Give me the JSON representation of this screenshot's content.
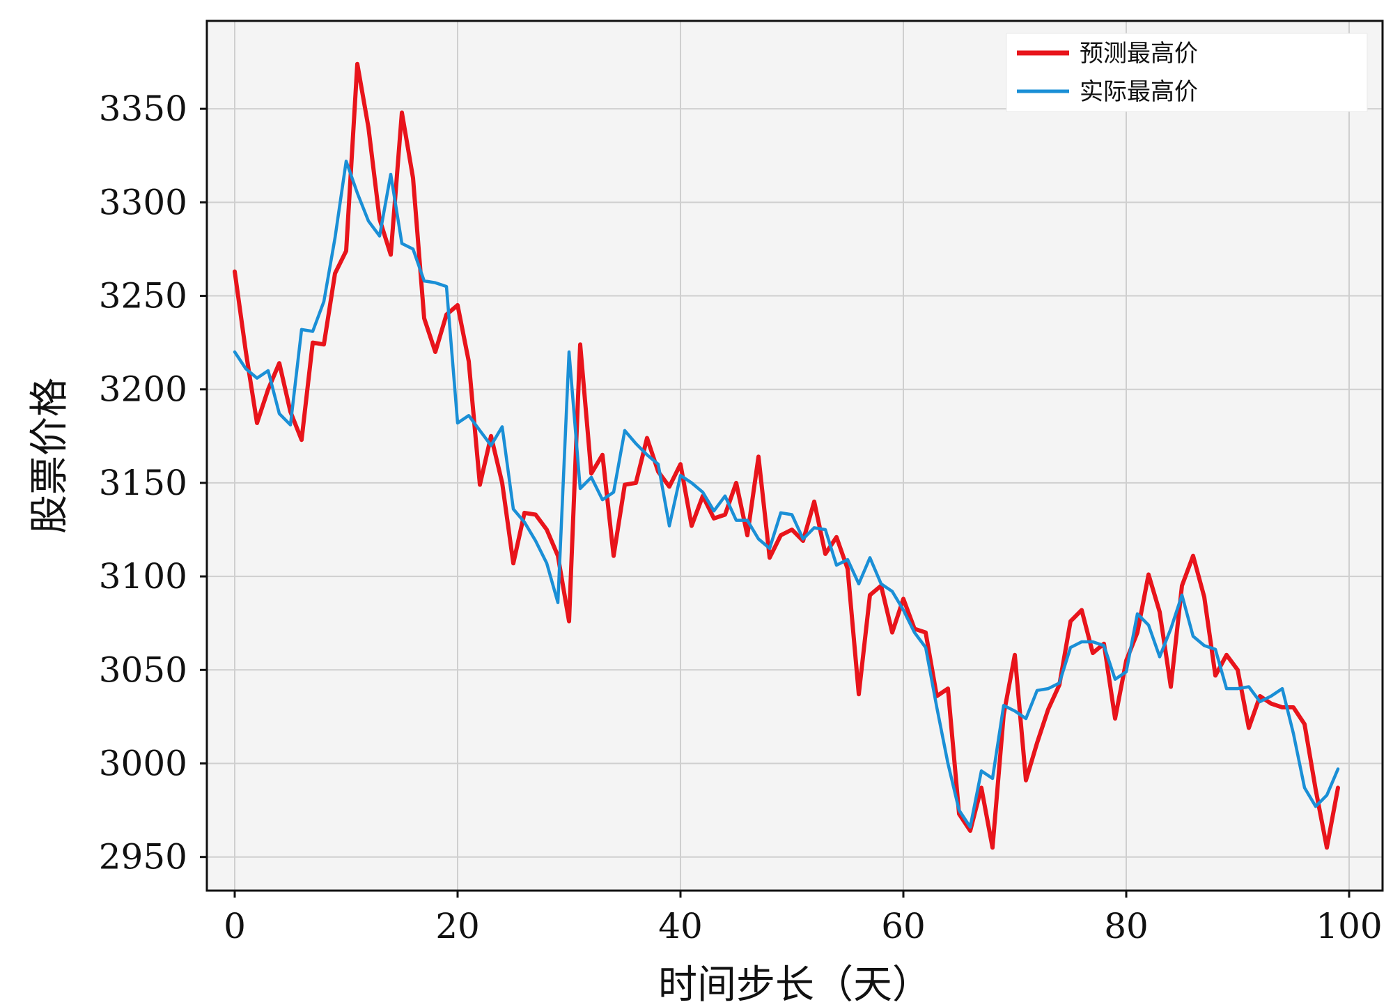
{
  "chart_data": {
    "type": "line",
    "title": "",
    "xlabel": "时间步长（天）",
    "ylabel": "股票价格",
    "xlim": [
      -2.5,
      103
    ],
    "ylim": [
      2932,
      3397
    ],
    "x_ticks": [
      0,
      20,
      40,
      60,
      80,
      100
    ],
    "y_ticks": [
      2950,
      3000,
      3050,
      3100,
      3150,
      3200,
      3250,
      3300,
      3350
    ],
    "grid": true,
    "legend": "top-right",
    "series": [
      {
        "name": "预测最高价",
        "color": "#e8141b",
        "values": [
          3263,
          3220,
          3182,
          3200,
          3214,
          3188,
          3173,
          3225,
          3224,
          3262,
          3274,
          3374,
          3340,
          3291,
          3272,
          3348,
          3313,
          3238,
          3220,
          3240,
          3245,
          3215,
          3149,
          3175,
          3150,
          3107,
          3134,
          3133,
          3125,
          3111,
          3076,
          3224,
          3155,
          3165,
          3111,
          3149,
          3150,
          3174,
          3156,
          3148,
          3160,
          3127,
          3143,
          3131,
          3133,
          3150,
          3122,
          3164,
          3110,
          3122,
          3125,
          3119,
          3140,
          3112,
          3121,
          3104,
          3037,
          3090,
          3095,
          3070,
          3088,
          3072,
          3070,
          3036,
          3040,
          2973,
          2964,
          2987,
          2955,
          3026,
          3058,
          2991,
          3011,
          3029,
          3042,
          3076,
          3082,
          3059,
          3064,
          3024,
          3055,
          3070,
          3101,
          3081,
          3041,
          3095,
          3111,
          3089,
          3047,
          3058,
          3050,
          3019,
          3036,
          3032,
          3030,
          3030,
          3021,
          2986,
          2955,
          2987
        ]
      },
      {
        "name": "实际最高价",
        "color": "#1a8fd6",
        "values": [
          3220,
          3211,
          3206,
          3210,
          3187,
          3181,
          3232,
          3231,
          3247,
          3281,
          3322,
          3305,
          3290,
          3282,
          3315,
          3278,
          3275,
          3258,
          3257,
          3255,
          3182,
          3186,
          3178,
          3170,
          3180,
          3136,
          3129,
          3119,
          3107,
          3086,
          3220,
          3147,
          3153,
          3141,
          3145,
          3178,
          3171,
          3165,
          3160,
          3127,
          3154,
          3150,
          3145,
          3135,
          3143,
          3130,
          3130,
          3120,
          3115,
          3134,
          3133,
          3120,
          3126,
          3125,
          3106,
          3109,
          3096,
          3110,
          3096,
          3092,
          3082,
          3070,
          3062,
          3030,
          3000,
          2975,
          2966,
          2996,
          2992,
          3031,
          3028,
          3024,
          3039,
          3040,
          3043,
          3062,
          3065,
          3065,
          3063,
          3045,
          3049,
          3080,
          3074,
          3057,
          3072,
          3090,
          3068,
          3063,
          3061,
          3040,
          3040,
          3041,
          3033,
          3036,
          3040,
          3016,
          2987,
          2977,
          2983,
          2997
        ]
      }
    ]
  }
}
